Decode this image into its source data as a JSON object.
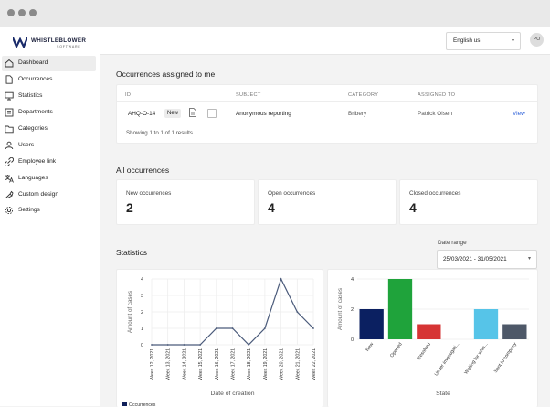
{
  "logo": {
    "name": "WHISTLEBLOWER",
    "sub": "SOFTWARE"
  },
  "sidebar": {
    "items": [
      {
        "label": "Dashboard",
        "icon": "home-icon",
        "active": true
      },
      {
        "label": "Occurrences",
        "icon": "document-icon",
        "active": false
      },
      {
        "label": "Statistics",
        "icon": "monitor-icon",
        "active": false
      },
      {
        "label": "Departments",
        "icon": "building-icon",
        "active": false
      },
      {
        "label": "Categories",
        "icon": "folder-icon",
        "active": false
      },
      {
        "label": "Users",
        "icon": "users-icon",
        "active": false
      },
      {
        "label": "Employee link",
        "icon": "link-icon",
        "active": false
      },
      {
        "label": "Languages",
        "icon": "translate-icon",
        "active": false
      },
      {
        "label": "Custom design",
        "icon": "palette-icon",
        "active": false
      },
      {
        "label": "Settings",
        "icon": "gear-icon",
        "active": false
      }
    ]
  },
  "topbar": {
    "language": "English us",
    "avatar_initials": "PO"
  },
  "assigned": {
    "title": "Occurrences assigned to me",
    "columns": [
      "ID",
      "SUBJECT",
      "CATEGORY",
      "ASSIGNED TO"
    ],
    "row": {
      "id": "AHQ-O-14",
      "status": "New",
      "subject": "Anonymous reporting",
      "category": "Bribery",
      "assigned_to": "Patrick Olsen",
      "action": "View"
    },
    "footer": "Showing 1 to 1 of 1 results"
  },
  "all": {
    "title": "All occurrences",
    "stats": [
      {
        "label": "New occurrences",
        "value": "2"
      },
      {
        "label": "Open occurrences",
        "value": "4"
      },
      {
        "label": "Closed occurrences",
        "value": "4"
      }
    ]
  },
  "statistics": {
    "title": "Statistics",
    "date_range_label": "Date range",
    "date_range_value": "25/03/2021 - 31/05/2021"
  },
  "colors": {
    "accent": "#2b5fd9",
    "navy": "#10205a",
    "line": "#4a5a7a"
  },
  "chart_data": [
    {
      "type": "line",
      "x": [
        "Week 12, 2021",
        "Week 13, 2021",
        "Week 14, 2021",
        "Week 15, 2021",
        "Week 16, 2021",
        "Week 17, 2021",
        "Week 18, 2021",
        "Week 19, 2021",
        "Week 20, 2021",
        "Week 21, 2021",
        "Week 22, 2021"
      ],
      "series": [
        {
          "name": "Occurrences",
          "values": [
            0,
            0,
            0,
            0,
            1,
            1,
            0,
            1,
            4,
            2,
            1
          ],
          "color": "#4a5a7a"
        }
      ],
      "xlabel": "Date of creation",
      "ylabel": "Amount of cases",
      "ylim": [
        0,
        4
      ],
      "yticks": [
        0,
        1,
        2,
        3,
        4
      ],
      "grid": true,
      "legend": "bottom-left"
    },
    {
      "type": "bar",
      "categories": [
        "New",
        "Opened",
        "Resolved",
        "Under investigati...",
        "Waiting for whis...",
        "Sent to company"
      ],
      "values": [
        2,
        4,
        1,
        0,
        2,
        1
      ],
      "colors": [
        "#0b2061",
        "#1fa33b",
        "#d63434",
        "#999999",
        "#56c4e8",
        "#4e5868"
      ],
      "xlabel": "State",
      "ylabel": "Amount of cases",
      "ylim": [
        0,
        4
      ],
      "yticks": [
        0,
        2,
        4
      ],
      "grid": true
    }
  ]
}
